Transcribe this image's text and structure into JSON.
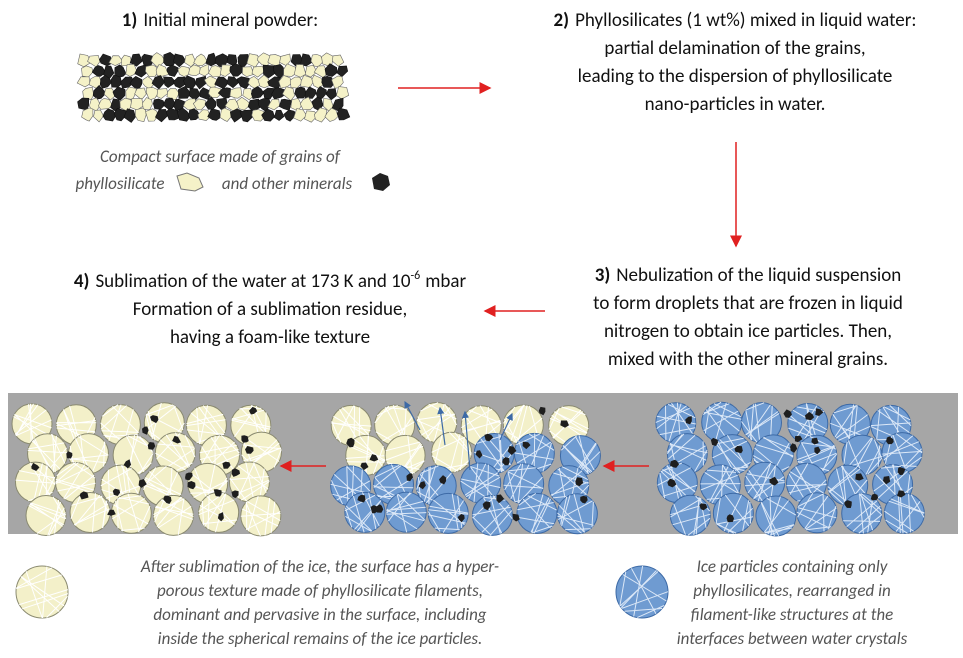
{
  "step1": {
    "number": "1)",
    "title": "Initial mineral powder:",
    "caption": {
      "line1": "Compact surface made of grains of",
      "line2_a": "phyllosilicate",
      "line2_b": "and other minerals"
    }
  },
  "step2": {
    "number": "2)",
    "lines": [
      "Phyllosilicates (1 wt%) mixed in liquid water:",
      "partial delamination of the grains,",
      "leading to the dispersion of phyllosilicate",
      "nano-particles in water."
    ]
  },
  "step3": {
    "number": "3)",
    "lines": [
      "Nebulization of the liquid suspension",
      "to form droplets that are frozen in liquid",
      "nitrogen to obtain ice particles. Then,",
      "mixed with the other mineral grains."
    ]
  },
  "step4": {
    "number": "4)",
    "line1": {
      "text": "Sublimation of the water at 173 K and 10",
      "exponent": "-6",
      "unit": "mbar"
    },
    "lines": [
      "Formation of a sublimation residue,",
      "having a foam-like texture"
    ]
  },
  "legend": {
    "residue": [
      "After sublimation of the ice, the surface has a hyper-",
      "porous texture made of phyllosilicate filaments,",
      "dominant and pervasive in the surface, including",
      "inside the spherical remains of the ice particles."
    ],
    "ice": [
      "Ice particles containing only",
      "phyllosilicates, rearranged in",
      "filament-like structures at the",
      "interfaces between water crystals"
    ]
  }
}
